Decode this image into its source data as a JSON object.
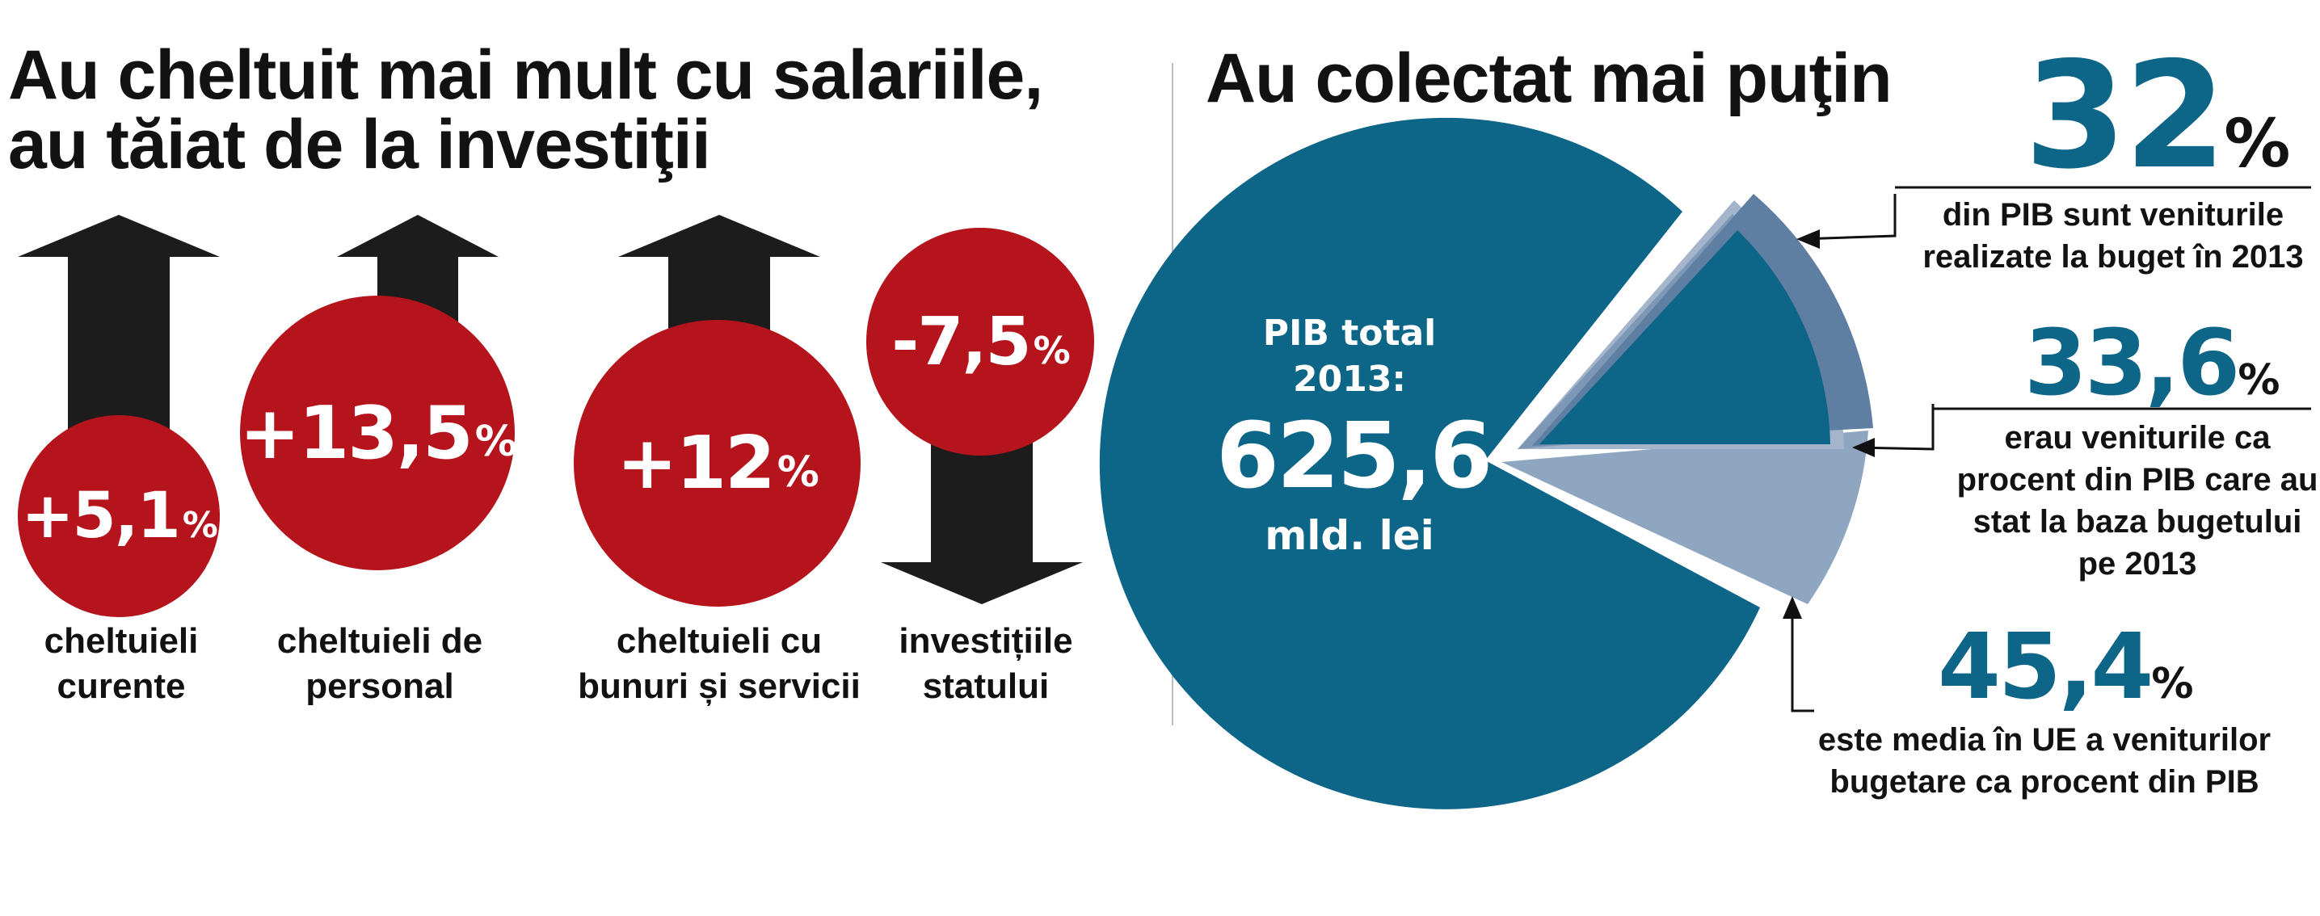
{
  "left": {
    "title_line1": "Au cheltuit mai mult cu salariile,",
    "title_line2": "au tăiat de la investiţii",
    "items": [
      {
        "value": "+5,1",
        "unit": "%",
        "direction": "up",
        "label_line1": "cheltuieli",
        "label_line2": "curente"
      },
      {
        "value": "+13,5",
        "unit": "%",
        "direction": "up",
        "label_line1": "cheltuieli de",
        "label_line2": "personal"
      },
      {
        "value": "+12",
        "unit": "%",
        "direction": "up",
        "label_line1": "cheltuieli cu",
        "label_line2": "bunuri și servicii"
      },
      {
        "value": "-7,5",
        "unit": "%",
        "direction": "down",
        "label_line1": "investițiile",
        "label_line2": "statului"
      }
    ]
  },
  "right": {
    "title": "Au colectat mai puţin",
    "pie_center": {
      "line1": "PIB total",
      "line2": "2013:",
      "value": "625,6",
      "unit": "mld. lei"
    },
    "annotations": [
      {
        "value": "32",
        "unit": "%",
        "lines": [
          "din PIB sunt veniturile",
          "realizate la buget în 2013"
        ]
      },
      {
        "value": "33,6",
        "unit": "%",
        "lines": [
          "erau veniturile ca",
          "procent din PIB care au",
          "stat la baza bugetului",
          "pe 2013"
        ]
      },
      {
        "value": "45,4",
        "unit": "%",
        "lines": [
          "este media în UE a veniturilor",
          "bugetare ca procent din PIB"
        ]
      }
    ]
  },
  "chart_data": [
    {
      "type": "bar",
      "title": "Au cheltuit mai mult cu salariile, au tăiat de la investiţii",
      "categories": [
        "cheltuieli curente",
        "cheltuieli de personal",
        "cheltuieli cu bunuri și servicii",
        "investițiile statului"
      ],
      "values": [
        5.1,
        13.5,
        12,
        -7.5
      ]
    },
    {
      "type": "pie",
      "title": "Au colectat mai puţin",
      "total": 625.6,
      "slices": [
        {
          "value": 32
        },
        {
          "value": 33.6
        },
        {
          "value": 45.4
        }
      ]
    }
  ],
  "colors": {
    "red": "#b6141d",
    "blue": "#0d6588",
    "blue_light": "#8fa6c1",
    "arrow": "#1c1c1c"
  }
}
